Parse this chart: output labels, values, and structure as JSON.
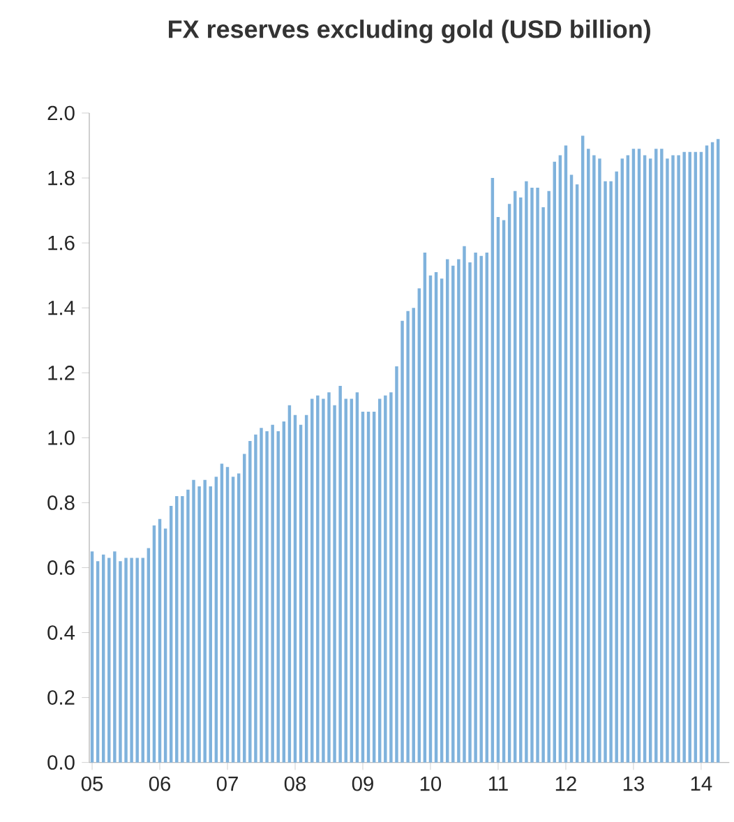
{
  "chart_data": {
    "type": "bar",
    "title": "FX reserves excluding gold (USD billion)",
    "color": "#7fb2dc",
    "categories": [
      "05",
      null,
      null,
      null,
      null,
      null,
      null,
      null,
      null,
      null,
      null,
      null,
      "06",
      null,
      null,
      null,
      null,
      null,
      null,
      null,
      null,
      null,
      null,
      null,
      "07",
      null,
      null,
      null,
      null,
      null,
      null,
      null,
      null,
      null,
      null,
      null,
      "08",
      null,
      null,
      null,
      null,
      null,
      null,
      null,
      null,
      null,
      null,
      null,
      "09",
      null,
      null,
      null,
      null,
      null,
      null,
      null,
      null,
      null,
      null,
      null,
      "10",
      null,
      null,
      null,
      null,
      null,
      null,
      null,
      null,
      null,
      null,
      null,
      "11",
      null,
      null,
      null,
      null,
      null,
      null,
      null,
      null,
      null,
      null,
      null,
      "12",
      null,
      null,
      null,
      null,
      null,
      null,
      null,
      null,
      null,
      null,
      null,
      "13",
      null,
      null,
      null,
      null,
      null,
      null,
      null,
      null,
      null,
      null,
      null,
      "14",
      null,
      null,
      null
    ],
    "values": [
      0.65,
      0.62,
      0.64,
      0.63,
      0.65,
      0.62,
      0.63,
      0.63,
      0.63,
      0.63,
      0.66,
      0.73,
      0.75,
      0.72,
      0.79,
      0.82,
      0.82,
      0.84,
      0.87,
      0.85,
      0.87,
      0.85,
      0.88,
      0.92,
      0.91,
      0.88,
      0.89,
      0.95,
      0.99,
      1.01,
      1.03,
      1.02,
      1.04,
      1.02,
      1.05,
      1.1,
      1.07,
      1.04,
      1.07,
      1.12,
      1.13,
      1.12,
      1.14,
      1.1,
      1.16,
      1.12,
      1.12,
      1.14,
      1.08,
      1.08,
      1.08,
      1.12,
      1.13,
      1.14,
      1.22,
      1.36,
      1.39,
      1.4,
      1.46,
      1.57,
      1.5,
      1.51,
      1.49,
      1.55,
      1.53,
      1.55,
      1.59,
      1.54,
      1.57,
      1.56,
      1.57,
      1.8,
      1.68,
      1.67,
      1.72,
      1.76,
      1.74,
      1.79,
      1.77,
      1.77,
      1.71,
      1.76,
      1.85,
      1.87,
      1.9,
      1.81,
      1.78,
      1.93,
      1.89,
      1.87,
      1.86,
      1.79,
      1.79,
      1.82,
      1.86,
      1.87,
      1.89,
      1.89,
      1.87,
      1.86,
      1.89,
      1.89,
      1.86,
      1.87,
      1.87,
      1.88,
      1.88,
      1.88,
      1.88,
      1.9,
      1.91,
      1.92
    ],
    "ylim": [
      0,
      2.0
    ],
    "yticks": [
      {
        "value": 0,
        "label": "0.0"
      },
      {
        "value": 0.2,
        "label": "0.2"
      },
      {
        "value": 0.4,
        "label": "0.4"
      },
      {
        "value": 0.6,
        "label": "0.6"
      },
      {
        "value": 0.8,
        "label": "0.8"
      },
      {
        "value": 1.0,
        "label": "1.0"
      },
      {
        "value": 1.2,
        "label": "1.2"
      },
      {
        "value": 1.4,
        "label": "1.4"
      },
      {
        "value": 1.6,
        "label": "1.6"
      },
      {
        "value": 1.8,
        "label": "1.8"
      },
      {
        "value": 2.0,
        "label": "2.0"
      }
    ],
    "grid": false
  }
}
